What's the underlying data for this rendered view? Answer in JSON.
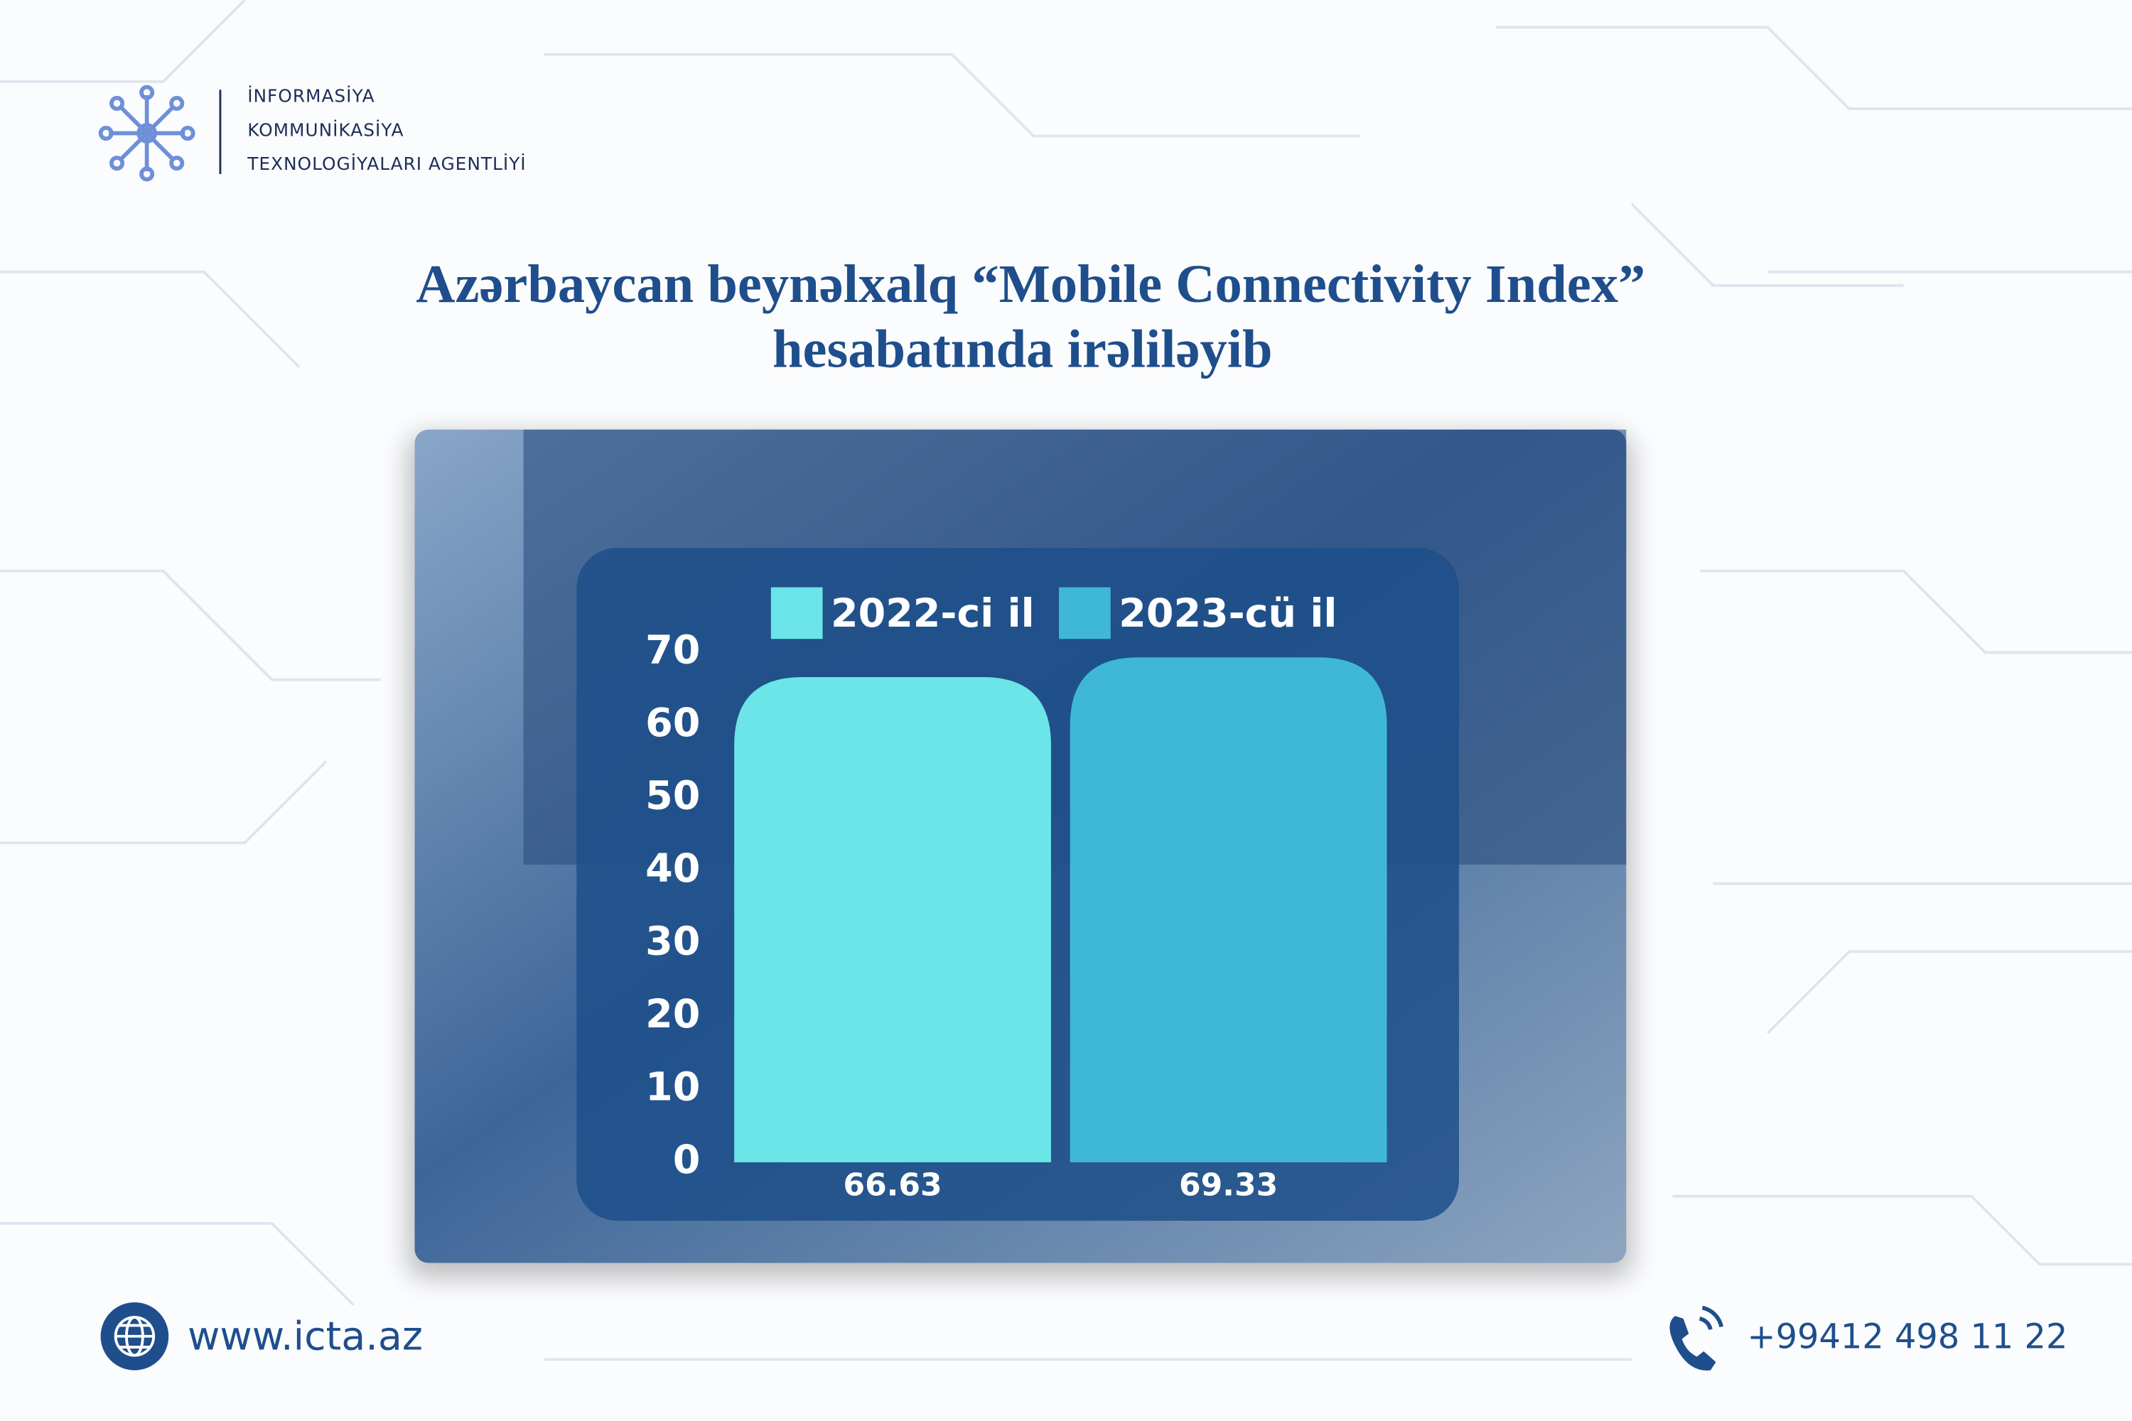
{
  "header": {
    "org": [
      "İNFORMASİYA",
      "KOMMUNİKASİYA",
      "TEXNOLOGİYALARI AGENTLİYİ"
    ]
  },
  "chart_data": {
    "type": "bar",
    "title": [
      "Azərbaycan beynəlxalq “Mobile Connectivity Index”",
      "hesabatında irəliləyib"
    ],
    "categories": [
      null
    ],
    "series": [
      {
        "name": "2022-ci il",
        "color": "#6be5e8",
        "values": [
          66.63
        ]
      },
      {
        "name": "2023-cü il",
        "color": "#3fb8d6",
        "values": [
          69.33
        ]
      }
    ],
    "ylim": [
      0,
      70
    ],
    "yticks": [
      0,
      10,
      20,
      30,
      40,
      50,
      60,
      70
    ],
    "grid": false
  },
  "footer": {
    "website": "www.icta.az",
    "phone": "+99412 498 11 22"
  }
}
